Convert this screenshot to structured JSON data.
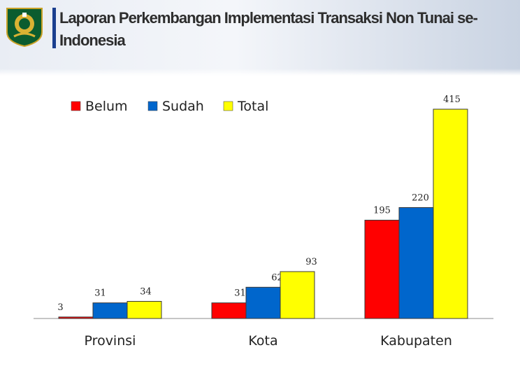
{
  "header": {
    "title": "Laporan Perkembangan Implementasi Transaksi Non Tunai se- Indonesia"
  },
  "colors": {
    "belum": "#ff0000",
    "sudah": "#0066cc",
    "total": "#ffff00",
    "title_bar": "#1b3f8f"
  },
  "chart_data": {
    "type": "bar",
    "title": "",
    "xlabel": "",
    "ylabel": "",
    "ylim": [
      0,
      450
    ],
    "grid": false,
    "legend_position": "top-left",
    "categories": [
      "Provinsi",
      "Kota",
      "Kabupaten"
    ],
    "series": [
      {
        "name": "Belum",
        "color": "#ff0000",
        "values": [
          3,
          31,
          195
        ]
      },
      {
        "name": "Sudah",
        "color": "#0066cc",
        "values": [
          31,
          62,
          220
        ]
      },
      {
        "name": "Total",
        "color": "#ffff00",
        "values": [
          34,
          93,
          415
        ]
      }
    ]
  }
}
